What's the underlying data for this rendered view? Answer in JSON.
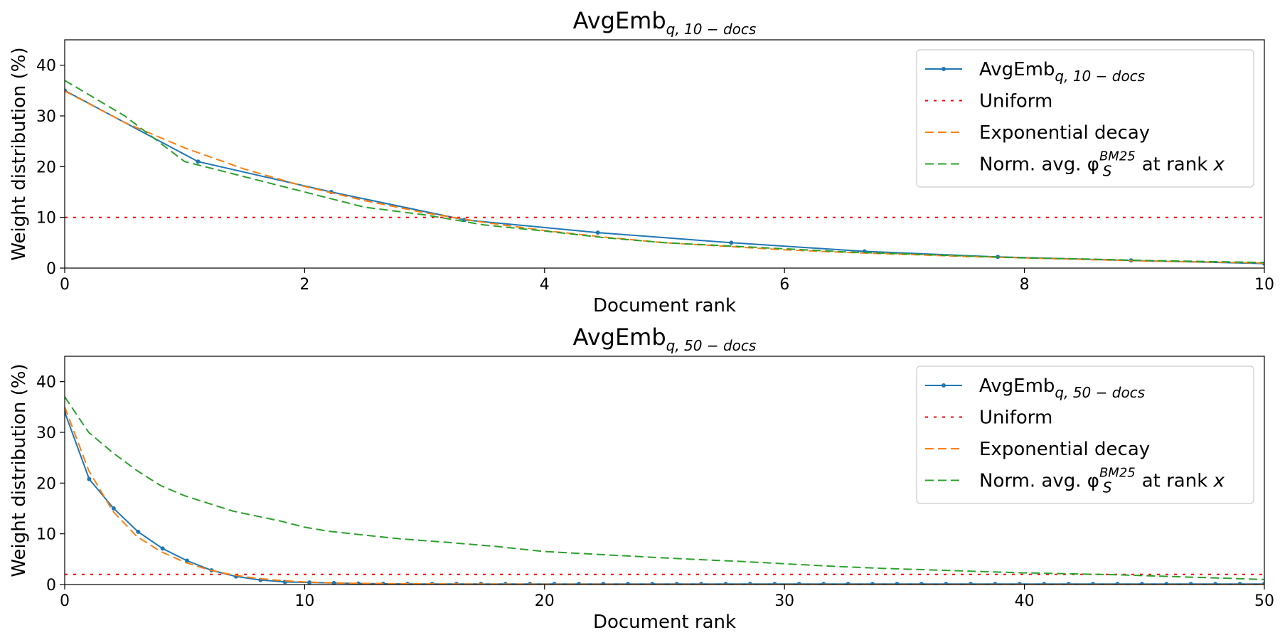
{
  "chart_data": [
    {
      "type": "line",
      "title": {
        "base": "AvgEmb",
        "subscript": "q, 10 − docs"
      },
      "xlabel": "Document rank",
      "ylabel": "Weight distribution (%)",
      "xlim": [
        0,
        10
      ],
      "ylim": [
        0,
        45
      ],
      "xticks": [
        0,
        2,
        4,
        6,
        8,
        10
      ],
      "yticks": [
        0,
        10,
        20,
        30,
        40
      ],
      "grid": false,
      "legend_position": "top-right",
      "series": [
        {
          "name": "AvgEmb",
          "name_subscript": "q, 10 − docs",
          "color": "#1f77b4",
          "style": "solid",
          "markers": true,
          "x": [
            0,
            1.111,
            2.222,
            3.333,
            4.444,
            5.556,
            6.667,
            7.778,
            8.889,
            10
          ],
          "y": [
            35,
            21,
            15,
            9.5,
            7,
            5,
            3.3,
            2.2,
            1.5,
            0.9
          ]
        },
        {
          "name": "Uniform",
          "color": "#ff0000",
          "style": "dotted",
          "x": [
            0,
            10
          ],
          "y": [
            10,
            10
          ]
        },
        {
          "name": "Exponential decay",
          "color": "#ff7f0e",
          "style": "dashed",
          "x": [
            0,
            0.5,
            1,
            1.5,
            2,
            2.5,
            3,
            3.5,
            4,
            4.5,
            5,
            5.5,
            6,
            6.5,
            7,
            7.5,
            8,
            8.5,
            9,
            9.5,
            10
          ],
          "y": [
            34.9,
            28.7,
            23.7,
            19.5,
            16.1,
            13.3,
            10.9,
            9.0,
            7.4,
            6.1,
            5.0,
            4.3,
            3.6,
            3.1,
            2.7,
            2.3,
            2.0,
            1.7,
            1.4,
            1.2,
            1.0
          ]
        },
        {
          "name": "Norm. avg. φ",
          "name_sub": "S",
          "name_sup": "BM25",
          "name_suffix": " at rank ",
          "name_var": "x",
          "color": "#2ca02c",
          "style": "dashed",
          "x": [
            0,
            0.5,
            1,
            1.5,
            2,
            2.5,
            3,
            3.5,
            4,
            4.5,
            5,
            5.5,
            6,
            6.5,
            7,
            7.5,
            8,
            8.5,
            9,
            9.5,
            10
          ],
          "y": [
            37,
            30,
            21,
            18,
            15,
            12,
            10.5,
            8.5,
            7.3,
            6.0,
            5.0,
            4.4,
            3.8,
            3.2,
            2.8,
            2.4,
            2.0,
            1.8,
            1.5,
            1.3,
            1.1
          ]
        }
      ]
    },
    {
      "type": "line",
      "title": {
        "base": "AvgEmb",
        "subscript": "q, 50 − docs"
      },
      "xlabel": "Document rank",
      "ylabel": "Weight distribution (%)",
      "xlim": [
        0,
        50
      ],
      "ylim": [
        0,
        45
      ],
      "xticks": [
        0,
        10,
        20,
        30,
        40,
        50
      ],
      "yticks": [
        0,
        10,
        20,
        30,
        40
      ],
      "grid": false,
      "legend_position": "top-right",
      "series": [
        {
          "name": "AvgEmb",
          "name_subscript": "q, 50 − docs",
          "color": "#1f77b4",
          "style": "solid",
          "markers": true,
          "x": [
            0,
            1.02,
            2.04,
            3.06,
            4.08,
            5.1,
            6.12,
            7.14,
            8.16,
            9.18,
            10.2,
            11.22,
            12.24,
            13.27,
            14.29,
            15.31,
            16.33,
            17.35,
            18.37,
            19.39,
            20.41,
            21.43,
            22.45,
            23.47,
            24.49,
            25.51,
            26.53,
            27.55,
            28.57,
            29.59,
            30.61,
            31.63,
            32.65,
            33.67,
            34.69,
            35.71,
            36.73,
            37.76,
            38.78,
            39.8,
            40.82,
            41.84,
            42.86,
            43.88,
            44.9,
            45.92,
            46.94,
            47.96,
            48.98,
            50
          ],
          "y": [
            34,
            20.8,
            15,
            10.4,
            7.1,
            4.7,
            2.8,
            1.6,
            0.9,
            0.5,
            0.4,
            0.3,
            0.2,
            0.15,
            0.1,
            0.1,
            0.1,
            0.1,
            0.1,
            0.1,
            0.1,
            0.1,
            0.1,
            0.1,
            0.1,
            0.1,
            0.1,
            0.1,
            0.1,
            0.1,
            0.1,
            0.1,
            0.1,
            0.1,
            0.1,
            0.1,
            0.1,
            0.1,
            0.1,
            0.1,
            0.1,
            0.1,
            0.1,
            0.1,
            0.1,
            0.1,
            0.1,
            0.1,
            0.1,
            0.1
          ]
        },
        {
          "name": "Uniform",
          "color": "#ff0000",
          "style": "dotted",
          "x": [
            0,
            50
          ],
          "y": [
            2,
            2
          ]
        },
        {
          "name": "Exponential decay",
          "color": "#ff7f0e",
          "style": "dashed",
          "x": [
            0,
            1,
            2,
            3,
            4,
            5,
            6,
            7,
            8,
            9,
            10,
            11,
            12,
            14,
            16,
            20,
            30,
            40,
            50
          ],
          "y": [
            35,
            22.5,
            14.5,
            9.5,
            6.5,
            4.4,
            2.9,
            1.9,
            1.2,
            0.8,
            0.5,
            0.35,
            0.25,
            0.15,
            0.1,
            0.05,
            0.02,
            0.01,
            0.01
          ]
        },
        {
          "name": "Norm. avg. φ",
          "name_sub": "S",
          "name_sup": "BM25",
          "name_suffix": " at rank ",
          "name_var": "x",
          "color": "#2ca02c",
          "style": "dashed",
          "x": [
            0,
            1,
            2,
            3,
            4,
            5,
            6,
            7,
            8,
            9,
            10,
            11,
            12,
            14,
            16,
            18,
            20,
            22,
            24,
            26,
            28,
            30,
            32,
            34,
            36,
            38,
            40,
            42,
            44,
            46,
            48,
            50
          ],
          "y": [
            37,
            30,
            26,
            22.5,
            19.5,
            17.5,
            16,
            14.5,
            13.5,
            12.5,
            11.3,
            10.5,
            10,
            9,
            8.3,
            7.5,
            6.5,
            6,
            5.5,
            5,
            4.6,
            4.1,
            3.6,
            3.2,
            2.9,
            2.6,
            2.3,
            2.1,
            1.9,
            1.6,
            1.3,
            1.0
          ]
        }
      ]
    }
  ]
}
